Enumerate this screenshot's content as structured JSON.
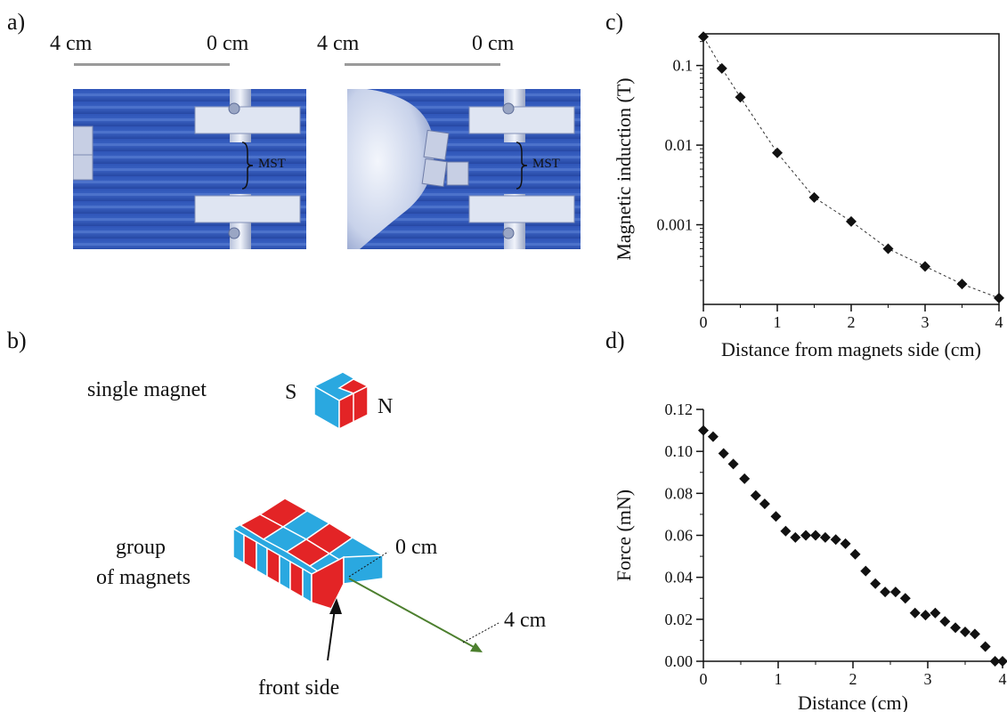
{
  "panels": {
    "a": "a)",
    "b": "b)",
    "c": "c)",
    "d": "d)"
  },
  "panel_a": {
    "left": {
      "scale_left": "4 cm",
      "scale_right": "0 cm",
      "bracket_label": "MST"
    },
    "right": {
      "scale_left": "4 cm",
      "scale_right": "0 cm",
      "bracket_label": "MST"
    }
  },
  "panel_b": {
    "single_magnet_label": "single magnet",
    "pole_s": "S",
    "pole_n": "N",
    "group_label_line1": "group",
    "group_label_line2": "of magnets",
    "zero_label": "0 cm",
    "four_label": "4 cm",
    "front_label": "front side"
  },
  "chart_data": [
    {
      "id": "c",
      "type": "scatter",
      "title": "",
      "xlabel": "Distance from magnets side (cm)",
      "ylabel": "Magnetic induction (T)",
      "yscale": "log",
      "xlim": [
        0,
        4
      ],
      "ylim": [
        0.0001,
        0.25
      ],
      "x_ticks": [
        "0",
        "1",
        "2",
        "3",
        "4"
      ],
      "y_ticks": [
        "0.1",
        "0.01",
        "0.001"
      ],
      "line": "dashed fit",
      "x": [
        0,
        0.25,
        0.5,
        1.0,
        1.5,
        2.0,
        2.5,
        3.0,
        3.5,
        4.0
      ],
      "y": [
        0.23,
        0.092,
        0.04,
        0.008,
        0.0022,
        0.0011,
        0.0005,
        0.0003,
        0.00018,
        0.00012
      ]
    },
    {
      "id": "d",
      "type": "scatter",
      "title": "",
      "xlabel": "Distance (cm)",
      "ylabel": "Force (mN)",
      "xlim": [
        0,
        4
      ],
      "ylim": [
        0,
        0.12
      ],
      "x_ticks": [
        "0",
        "1",
        "2",
        "3",
        "4"
      ],
      "y_ticks": [
        "0.00",
        "0.02",
        "0.04",
        "0.06",
        "0.08",
        "0.10",
        "0.12"
      ],
      "x": [
        0,
        0.13,
        0.27,
        0.4,
        0.55,
        0.7,
        0.82,
        0.97,
        1.1,
        1.23,
        1.37,
        1.5,
        1.63,
        1.77,
        1.9,
        2.03,
        2.17,
        2.3,
        2.43,
        2.57,
        2.7,
        2.83,
        2.97,
        3.1,
        3.23,
        3.37,
        3.5,
        3.63,
        3.77,
        3.9,
        4.0
      ],
      "y": [
        0.11,
        0.107,
        0.099,
        0.094,
        0.087,
        0.079,
        0.075,
        0.069,
        0.062,
        0.059,
        0.06,
        0.06,
        0.059,
        0.058,
        0.056,
        0.051,
        0.043,
        0.037,
        0.033,
        0.033,
        0.03,
        0.023,
        0.022,
        0.023,
        0.019,
        0.016,
        0.014,
        0.013,
        0.007,
        0.0,
        0.0
      ]
    }
  ],
  "colors": {
    "photo_blue": "#2b4fb0",
    "magnet_red": "#e32426",
    "magnet_blue": "#2aa8e0",
    "arrow_green": "#4c7f2e",
    "scale_bar": "#999999"
  }
}
